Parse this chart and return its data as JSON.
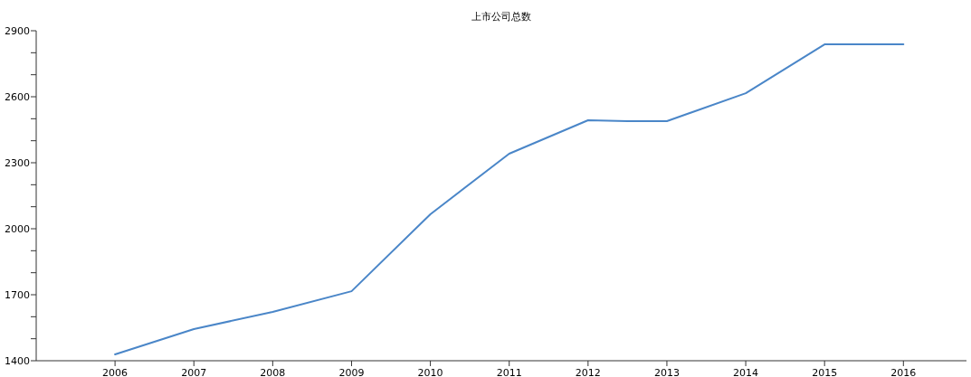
{
  "chart_data": {
    "type": "line",
    "title": "上市公司总数",
    "x": [
      2006,
      2007,
      2008,
      2009,
      2010,
      2011,
      2012,
      2012.5,
      2013,
      2014,
      2015,
      2016
    ],
    "series": [
      {
        "color": "#4a86c8",
        "values": [
          1429,
          1544,
          1622,
          1716,
          2066,
          2341,
          2493,
          2489,
          2489,
          2616,
          2838,
          2838
        ]
      }
    ],
    "xlim": [
      2005,
      2016.8
    ],
    "xticks": [
      2006,
      2007,
      2008,
      2009,
      2010,
      2011,
      2012,
      2013,
      2014,
      2015,
      2016
    ],
    "ylim": [
      1400,
      2900
    ],
    "yticks": [
      1400,
      {
        "value": 1500,
        "label": null
      },
      {
        "value": 1600,
        "label": null
      },
      1700,
      {
        "value": 1800,
        "label": null
      },
      {
        "value": 1900,
        "label": null
      },
      2000,
      {
        "value": 2100,
        "label": null
      },
      {
        "value": 2200,
        "label": null
      },
      2300,
      {
        "value": 2400,
        "label": null
      },
      {
        "value": 2500,
        "label": null
      },
      2600,
      {
        "value": 2700,
        "label": null
      },
      {
        "value": 2800,
        "label": null
      },
      2900
    ],
    "grid": false,
    "marker": "none",
    "line_style": "solid"
  }
}
